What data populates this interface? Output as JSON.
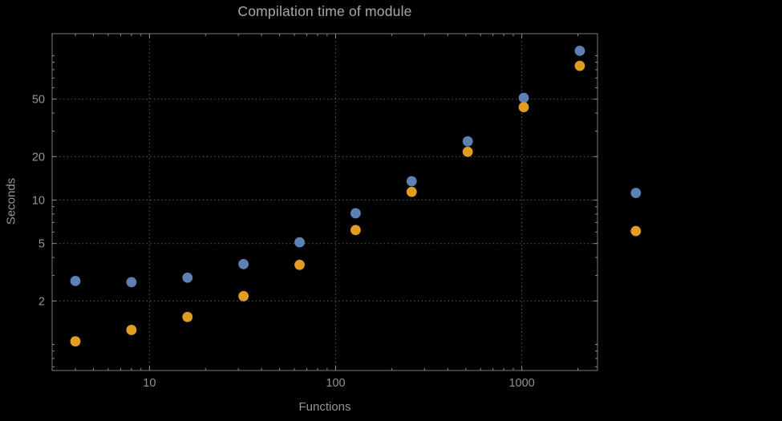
{
  "page": {
    "background": "#000000"
  },
  "chart_data": {
    "type": "scatter",
    "title": "Compilation time of module",
    "xlabel": "Functions",
    "ylabel": "Seconds",
    "x_scale": "log",
    "y_scale": "log",
    "x_range": [
      3,
      2550
    ],
    "y_range": [
      0.66,
      142
    ],
    "grid": true,
    "legend": "none",
    "x_ticks": [
      {
        "value": 10,
        "label": "10"
      },
      {
        "value": 100,
        "label": "100"
      },
      {
        "value": 1000,
        "label": "1000"
      }
    ],
    "y_ticks": [
      {
        "value": 2,
        "label": "2"
      },
      {
        "value": 5,
        "label": "5"
      },
      {
        "value": 10,
        "label": "10"
      },
      {
        "value": 20,
        "label": "20"
      },
      {
        "value": 50,
        "label": "50"
      }
    ],
    "x_minor_ticks": [
      3,
      4,
      5,
      6,
      7,
      8,
      9,
      20,
      30,
      40,
      50,
      60,
      70,
      80,
      90,
      200,
      300,
      400,
      500,
      600,
      700,
      800,
      900,
      2000
    ],
    "y_minor_ticks": [
      0.7,
      0.8,
      0.9,
      1,
      3,
      4,
      6,
      7,
      8,
      9,
      30,
      40,
      60,
      70,
      80,
      90,
      100
    ],
    "x": [
      4,
      8,
      16,
      32,
      64,
      128,
      256,
      512,
      1024,
      2048,
      4096
    ],
    "series": [
      {
        "name": "series-1-blue",
        "color": "#5e81b5",
        "values": [
          2.75,
          2.7,
          2.9,
          3.6,
          5.1,
          8.1,
          13.5,
          25.5,
          51,
          108,
          11.2
        ]
      },
      {
        "name": "series-2-orange",
        "color": "#e19c24",
        "values": [
          1.05,
          1.26,
          1.55,
          2.16,
          3.56,
          6.2,
          11.4,
          21.6,
          44,
          85,
          6.1
        ]
      }
    ],
    "colors": {
      "grid": "#5f5f5f",
      "frame": "#787878",
      "tick": "#8c8c8c",
      "title": "#a8a8a8",
      "axis_label": "#959595",
      "tick_label": "#949494"
    }
  }
}
